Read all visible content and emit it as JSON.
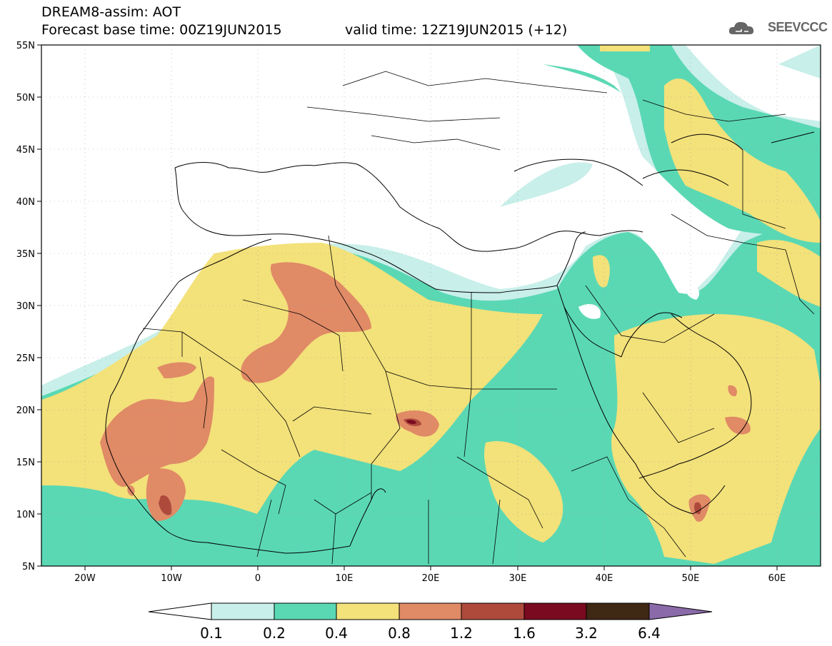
{
  "header": {
    "title": "DREAM8-assim: AOT",
    "base_time": "Forecast base time: 00Z19JUN2015",
    "valid_time": "valid time: 12Z19JUN2015 (+12)",
    "logo_text": "SEEVCCC"
  },
  "axes": {
    "lat_labels": [
      "55N",
      "50N",
      "45N",
      "40N",
      "35N",
      "30N",
      "25N",
      "20N",
      "15N",
      "10N",
      "5N"
    ],
    "lon_labels": [
      "20W",
      "10W",
      "0",
      "10E",
      "20E",
      "30E",
      "40E",
      "50E",
      "60E"
    ]
  },
  "colorbar": {
    "labels": [
      "0.1",
      "0.2",
      "0.4",
      "0.8",
      "1.2",
      "1.6",
      "3.2",
      "6.4"
    ],
    "colors": [
      "#ffffff",
      "#c8efe9",
      "#5ad8b4",
      "#f3e17a",
      "#e08a66",
      "#ad4a3c",
      "#7a0a20",
      "#3f2814",
      "#8a6aa8"
    ]
  }
}
